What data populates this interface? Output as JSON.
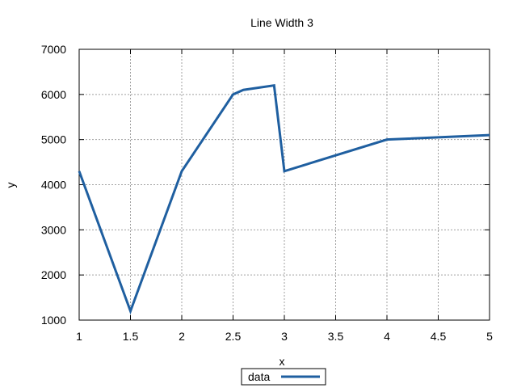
{
  "chart_data": {
    "type": "line",
    "title": "Line Width 3",
    "xlabel": "x",
    "ylabel": "y",
    "xlim": [
      1,
      5
    ],
    "ylim": [
      1000,
      7000
    ],
    "xticks": [
      1,
      1.5,
      2,
      2.5,
      3,
      3.5,
      4,
      4.5,
      5
    ],
    "yticks": [
      1000,
      2000,
      3000,
      4000,
      5000,
      6000,
      7000
    ],
    "grid": true,
    "legend_position": "bottom-center",
    "series": [
      {
        "name": "data",
        "color": "#1f5fa0",
        "line_width": 3,
        "x": [
          1,
          1.5,
          2,
          2.5,
          2.6,
          2.9,
          3,
          4,
          5
        ],
        "y": [
          4300,
          1200,
          4300,
          6000,
          6100,
          6200,
          4300,
          5000,
          5100
        ]
      }
    ]
  }
}
